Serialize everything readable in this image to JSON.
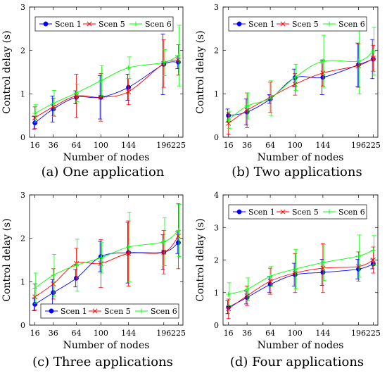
{
  "x_categories": [
    "16",
    "36",
    "64",
    "100",
    "144",
    "196",
    "225"
  ],
  "colors": {
    "Scen 1": "#0000ff",
    "Scen 5": "#ff0000",
    "Scen 6": "#00ff00"
  },
  "chart_data": [
    {
      "type": "line",
      "caption": "(a) One application",
      "xlabel": "Number of nodes",
      "ylabel": "Control delay (s)",
      "x": [
        16,
        36,
        64,
        100,
        144,
        196,
        225
      ],
      "ylim": [
        0,
        3
      ],
      "yticks": [
        0,
        1,
        2,
        3
      ],
      "legend": "top-left",
      "series": [
        {
          "name": "Scen 1",
          "marker": "circle",
          "values": [
            0.33,
            0.65,
            0.92,
            0.92,
            1.15,
            1.68,
            1.73
          ],
          "err": [
            0.15,
            0.3,
            0.15,
            0.5,
            0.3,
            0.7,
            0.15
          ]
        },
        {
          "name": "Scen 5",
          "marker": "cross",
          "values": [
            0.45,
            0.7,
            0.95,
            0.92,
            1.05,
            1.7,
            1.78
          ],
          "err": [
            0.25,
            0.2,
            0.5,
            0.55,
            0.3,
            0.55,
            0.35
          ]
        },
        {
          "name": "Scen 6",
          "marker": "plus",
          "values": [
            0.55,
            0.78,
            1.02,
            1.3,
            1.6,
            1.72,
            1.88
          ],
          "err": [
            0.2,
            0.3,
            0.2,
            0.35,
            0.25,
            0.3,
            0.7
          ]
        }
      ]
    },
    {
      "type": "line",
      "caption": "(b) Two applications",
      "xlabel": "Number of nodes",
      "ylabel": "Control delay (s)",
      "x": [
        16,
        36,
        64,
        100,
        144,
        196,
        225
      ],
      "ylim": [
        0,
        3
      ],
      "yticks": [
        0,
        1,
        2,
        3
      ],
      "legend": "top-left",
      "series": [
        {
          "name": "Scen 1",
          "marker": "circle",
          "values": [
            0.5,
            0.58,
            0.88,
            1.37,
            1.38,
            1.67,
            1.8
          ],
          "err": [
            0.15,
            0.3,
            0.1,
            0.2,
            0.4,
            0.5,
            0.45
          ]
        },
        {
          "name": "Scen 5",
          "marker": "cross",
          "values": [
            0.32,
            0.62,
            0.92,
            1.22,
            1.48,
            1.65,
            1.82
          ],
          "err": [
            0.25,
            0.4,
            0.35,
            0.25,
            0.3,
            0.5,
            0.3
          ]
        },
        {
          "name": "Scen 6",
          "marker": "plus",
          "values": [
            0.4,
            0.72,
            0.9,
            1.38,
            1.75,
            1.75,
            1.98
          ],
          "err": [
            0.2,
            0.3,
            0.4,
            0.3,
            0.6,
            0.75,
            0.55
          ]
        }
      ]
    },
    {
      "type": "line",
      "caption": "(c) Three applications",
      "xlabel": "Number of nodes",
      "ylabel": "Control delay (s)",
      "x": [
        16,
        36,
        64,
        100,
        144,
        196,
        225
      ],
      "ylim": [
        0,
        3
      ],
      "yticks": [
        0,
        1,
        2,
        3
      ],
      "legend": "bottom-right",
      "series": [
        {
          "name": "Scen 1",
          "marker": "circle",
          "values": [
            0.48,
            0.75,
            1.08,
            1.58,
            1.67,
            1.68,
            1.9
          ],
          "err": [
            0.15,
            0.3,
            0.2,
            0.35,
            0.7,
            0.4,
            0.25
          ]
        },
        {
          "name": "Scen 5",
          "marker": "cross",
          "values": [
            0.65,
            0.95,
            1.42,
            1.42,
            1.65,
            1.68,
            2.05
          ],
          "err": [
            0.3,
            0.35,
            0.35,
            0.55,
            0.75,
            0.5,
            0.75
          ]
        },
        {
          "name": "Scen 6",
          "marker": "plus",
          "values": [
            0.85,
            1.15,
            1.38,
            1.55,
            1.8,
            1.92,
            2.18
          ],
          "err": [
            0.35,
            0.48,
            0.6,
            0.35,
            0.8,
            0.55,
            0.6
          ]
        }
      ]
    },
    {
      "type": "line",
      "caption": "(d) Four applications",
      "xlabel": "Number of nodes",
      "ylabel": "Control delay (s)",
      "x": [
        16,
        36,
        64,
        100,
        144,
        196,
        225
      ],
      "ylim": [
        0,
        4
      ],
      "yticks": [
        0,
        1,
        2,
        3,
        4
      ],
      "legend": "top-left",
      "series": [
        {
          "name": "Scen 1",
          "marker": "circle",
          "values": [
            0.55,
            0.85,
            1.25,
            1.55,
            1.62,
            1.72,
            1.88
          ],
          "err": [
            0.2,
            0.2,
            0.25,
            0.35,
            0.4,
            0.3,
            0.15
          ]
        },
        {
          "name": "Scen 5",
          "marker": "cross",
          "values": [
            0.5,
            0.9,
            1.35,
            1.6,
            1.75,
            1.8,
            2.0
          ],
          "err": [
            0.3,
            0.3,
            0.4,
            0.6,
            0.75,
            0.45,
            0.4
          ]
        },
        {
          "name": "Scen 6",
          "marker": "plus",
          "values": [
            0.95,
            1.1,
            1.5,
            1.72,
            1.92,
            2.12,
            2.3
          ],
          "err": [
            0.35,
            0.35,
            0.3,
            0.6,
            0.55,
            0.65,
            0.45
          ]
        }
      ]
    }
  ]
}
